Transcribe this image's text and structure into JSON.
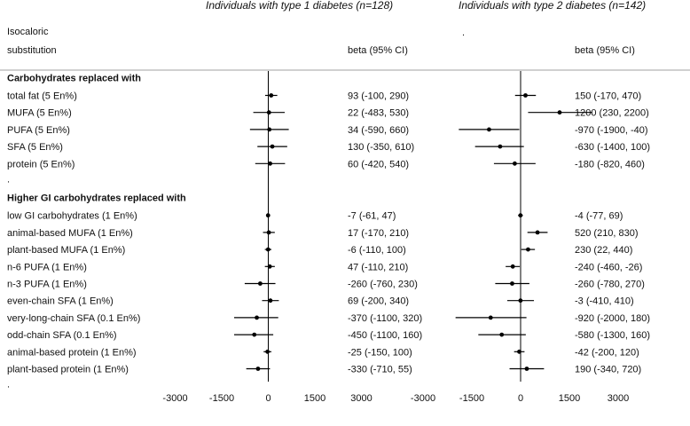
{
  "chart_data": {
    "type": "forest",
    "header": {
      "label_line1": "Isocaloric",
      "label_line2": "substitution",
      "ci_header": "beta (95% CI)",
      "stray_mark": "."
    },
    "panels": [
      {
        "title": "Individuals with type 1 diabetes (n=128)",
        "xlim": [
          -3000,
          3000
        ],
        "ticks": [
          -3000,
          -1500,
          0,
          1500,
          3000
        ]
      },
      {
        "title": "Individuals with type 2 diabetes (n=142)",
        "xlim": [
          -3000,
          3000
        ],
        "ticks": [
          -3000,
          -1500,
          0,
          1500,
          3000
        ]
      }
    ],
    "sections": [
      {
        "title": "Carbohydrates replaced with",
        "trailing_text": ".",
        "rows": [
          {
            "label": "total fat (5 En%)",
            "t1": {
              "beta": 93,
              "lo": -100,
              "hi": 290,
              "text": "93 (-100, 290)"
            },
            "t2": {
              "beta": 150,
              "lo": -170,
              "hi": 470,
              "text": "150 (-170, 470)"
            }
          },
          {
            "label": "MUFA (5 En%)",
            "t1": {
              "beta": 22,
              "lo": -483,
              "hi": 530,
              "text": "22 (-483, 530)"
            },
            "t2": {
              "beta": 1200,
              "lo": 230,
              "hi": 2200,
              "text": "1200 (230, 2200)"
            }
          },
          {
            "label": "PUFA (5 En%)",
            "t1": {
              "beta": 34,
              "lo": -590,
              "hi": 660,
              "text": "34 (-590, 660)"
            },
            "t2": {
              "beta": -970,
              "lo": -1900,
              "hi": -40,
              "text": "-970 (-1900, -40)"
            }
          },
          {
            "label": "SFA (5 En%)",
            "t1": {
              "beta": 130,
              "lo": -350,
              "hi": 610,
              "text": "130 (-350, 610)"
            },
            "t2": {
              "beta": -630,
              "lo": -1400,
              "hi": 100,
              "text": "-630 (-1400, 100)"
            }
          },
          {
            "label": "protein (5 En%)",
            "t1": {
              "beta": 60,
              "lo": -420,
              "hi": 540,
              "text": "60 (-420, 540)"
            },
            "t2": {
              "beta": -180,
              "lo": -820,
              "hi": 460,
              "text": "-180 (-820, 460)"
            }
          }
        ]
      },
      {
        "title": "Higher GI carbohydrates replaced with",
        "trailing_text": ".",
        "rows": [
          {
            "label": "low GI carbohydrates (1 En%)",
            "t1": {
              "beta": -7,
              "lo": -61,
              "hi": 47,
              "text": "-7 (-61, 47)"
            },
            "t2": {
              "beta": -4,
              "lo": -77,
              "hi": 69,
              "text": "-4 (-77, 69)"
            }
          },
          {
            "label": "animal-based MUFA (1 En%)",
            "t1": {
              "beta": 17,
              "lo": -170,
              "hi": 210,
              "text": "17 (-170, 210)"
            },
            "t2": {
              "beta": 520,
              "lo": 210,
              "hi": 830,
              "text": "520 (210, 830)"
            }
          },
          {
            "label": "plant-based MUFA (1 En%)",
            "t1": {
              "beta": -6,
              "lo": -110,
              "hi": 100,
              "text": "-6 (-110, 100)"
            },
            "t2": {
              "beta": 230,
              "lo": 22,
              "hi": 440,
              "text": "230 (22, 440)"
            }
          },
          {
            "label": "n-6 PUFA (1 En%)",
            "t1": {
              "beta": 47,
              "lo": -110,
              "hi": 210,
              "text": "47 (-110, 210)"
            },
            "t2": {
              "beta": -240,
              "lo": -460,
              "hi": -26,
              "text": "-240 (-460, -26)"
            }
          },
          {
            "label": "n-3 PUFA (1 En%)",
            "t1": {
              "beta": -260,
              "lo": -760,
              "hi": 230,
              "text": "-260 (-760, 230)"
            },
            "t2": {
              "beta": -260,
              "lo": -780,
              "hi": 270,
              "text": "-260 (-780, 270)"
            }
          },
          {
            "label": "even-chain SFA (1 En%)",
            "t1": {
              "beta": 69,
              "lo": -200,
              "hi": 340,
              "text": "69 (-200, 340)"
            },
            "t2": {
              "beta": -3,
              "lo": -410,
              "hi": 410,
              "text": "-3 (-410, 410)"
            }
          },
          {
            "label": "very-long-chain SFA (0.1 En%)",
            "t1": {
              "beta": -370,
              "lo": -1100,
              "hi": 320,
              "text": "-370 (-1100, 320)"
            },
            "t2": {
              "beta": -920,
              "lo": -2000,
              "hi": 180,
              "text": "-920 (-2000, 180)"
            }
          },
          {
            "label": "odd-chain SFA (0.1 En%)",
            "t1": {
              "beta": -450,
              "lo": -1100,
              "hi": 160,
              "text": "-450 (-1100, 160)"
            },
            "t2": {
              "beta": -580,
              "lo": -1300,
              "hi": 160,
              "text": "-580 (-1300, 160)"
            }
          },
          {
            "label": "animal-based protein (1 En%)",
            "t1": {
              "beta": -25,
              "lo": -150,
              "hi": 100,
              "text": "-25 (-150, 100)"
            },
            "t2": {
              "beta": -42,
              "lo": -200,
              "hi": 120,
              "text": "-42 (-200, 120)"
            }
          },
          {
            "label": "plant-based protein (1 En%)",
            "t1": {
              "beta": -330,
              "lo": -710,
              "hi": 55,
              "text": "-330 (-710, 55)"
            },
            "t2": {
              "beta": 190,
              "lo": -340,
              "hi": 720,
              "text": "190 (-340, 720)"
            }
          }
        ]
      }
    ],
    "colors": {
      "ink": "#000000",
      "divider": "#b3b3b3"
    }
  }
}
